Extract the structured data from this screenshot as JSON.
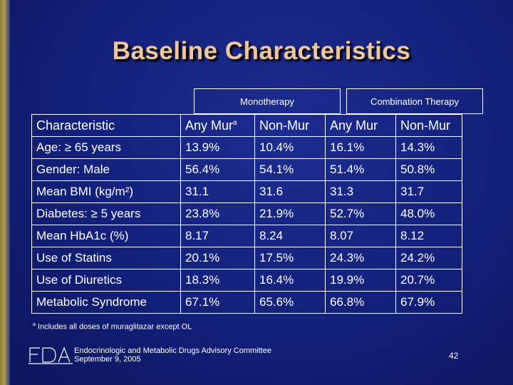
{
  "title": "Baseline Characteristics",
  "groups": {
    "monotherapy": "Monotherapy",
    "combination": "Combination Therapy"
  },
  "header": {
    "characteristic": "Characteristic",
    "any_mur": "Any Mur",
    "any_mur_sup": "a",
    "non_mur_1": "Non-Mur",
    "any_mur_2": "Any Mur",
    "non_mur_2": "Non-Mur"
  },
  "rows": [
    {
      "label": "Age: ≥ 65 years",
      "values": [
        "13.9%",
        "10.4%",
        "16.1%",
        "14.3%"
      ]
    },
    {
      "label": "Gender: Male",
      "values": [
        "56.4%",
        "54.1%",
        "51.4%",
        "50.8%"
      ]
    },
    {
      "label": "Mean BMI (kg/m²)",
      "values": [
        "31.1",
        "31.6",
        "31.3",
        "31.7"
      ]
    },
    {
      "label": "Diabetes: ≥ 5 years",
      "values": [
        "23.8%",
        "21.9%",
        "52.7%",
        "48.0%"
      ]
    },
    {
      "label": "Mean HbA1c (%)",
      "values": [
        "8.17",
        "8.24",
        "8.07",
        "8.12"
      ]
    },
    {
      "label": "Use of Statins",
      "values": [
        "20.1%",
        "17.5%",
        "24.3%",
        "24.2%"
      ]
    },
    {
      "label": "Use of Diuretics",
      "values": [
        "18.3%",
        "16.4%",
        "19.9%",
        "20.7%"
      ]
    },
    {
      "label": "Metabolic Syndrome",
      "values": [
        "67.1%",
        "65.6%",
        "66.8%",
        "67.9%"
      ]
    }
  ],
  "footnote": {
    "marker": "a",
    "text": "Includes all doses of muraglitazar except OL"
  },
  "footer": {
    "logo_text": "FDA",
    "committee": "Endocrinologic and Metabolic Drugs Advisory Committee",
    "date": "September 9, 2005",
    "page_number": "42"
  }
}
